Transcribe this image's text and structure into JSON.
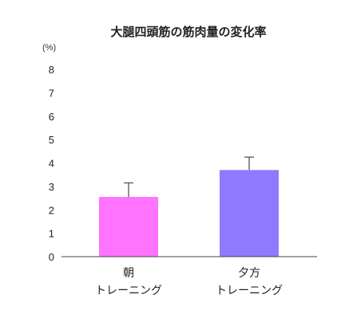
{
  "chart_data": {
    "type": "bar",
    "title": "大腿四頭筋の筋肉量の変化率",
    "unit": "(%)",
    "ylim": [
      0,
      8
    ],
    "yticks": [
      0,
      1,
      2,
      3,
      4,
      5,
      6,
      7,
      8
    ],
    "grid": false,
    "categories": [
      [
        "朝",
        "トレーニング"
      ],
      [
        "夕方",
        "トレーニング"
      ]
    ],
    "values": [
      2.55,
      3.7
    ],
    "errors": [
      0.6,
      0.55
    ],
    "colors": [
      "#ff73ff",
      "#8f7aff"
    ]
  }
}
